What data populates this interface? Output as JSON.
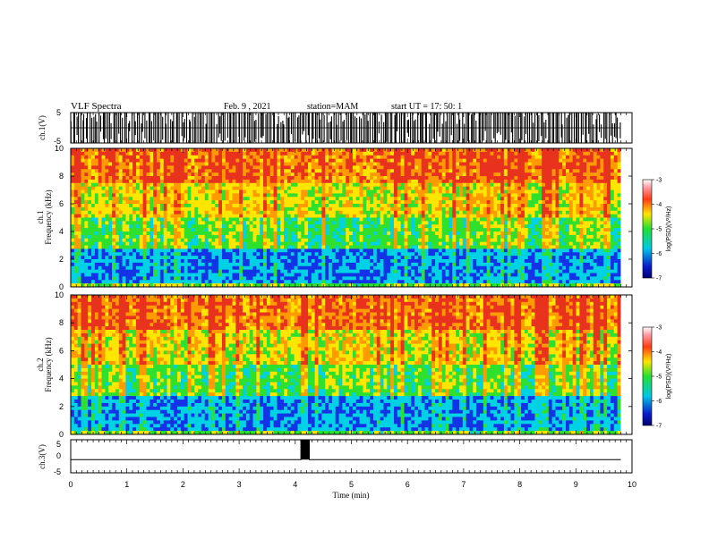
{
  "header": {
    "title": "VLF Spectra",
    "date": "Feb. 9 , 2021",
    "station": "station=MAM",
    "start": "start UT =  17: 50: 1"
  },
  "labels": {
    "ch1": "ch.1(V)",
    "ch3": "ch.3(V)",
    "spec1_ch": "ch.1",
    "spec2_ch": "ch.2",
    "freq": "Frequency (kHz)",
    "time": "Time (min)",
    "cbar_unit": "log(PSD)(V²/Hz)"
  },
  "colors": {
    "red": "#e8321e",
    "orange": "#ff9a00",
    "yellow": "#ffe600",
    "green": "#2fe02f",
    "cyan": "#00d2e6",
    "blue": "#1432e6",
    "navy": "#000080"
  },
  "chart_data": [
    {
      "type": "line",
      "panel": "ch.1 waveform",
      "ylabel": "ch.1(V)",
      "ylim": [
        -5,
        5
      ],
      "yticks": [
        "5",
        "-5"
      ],
      "xlim": [
        0,
        10
      ],
      "description_values": {
        "impulse_range_v": [
          -5,
          5
        ]
      }
    },
    {
      "type": "heatmap",
      "panel": "ch.1 spectrogram",
      "ylabel": "Frequency (kHz)",
      "channel": "ch.1",
      "ylim": [
        0,
        10
      ],
      "yticks": [
        "0",
        "2",
        "4",
        "6",
        "8",
        "10"
      ],
      "xlim": [
        0,
        10
      ],
      "colorbar": {
        "label": "log(PSD)(V²/Hz)",
        "ticks": [
          "-3",
          "-4",
          "-5",
          "-6",
          "-7"
        ],
        "range": [
          -7,
          -3
        ]
      }
    },
    {
      "type": "heatmap",
      "panel": "ch.2 spectrogram",
      "ylabel": "Frequency (kHz)",
      "channel": "ch.2",
      "ylim": [
        0,
        10
      ],
      "yticks": [
        "0",
        "2",
        "4",
        "6",
        "8",
        "10"
      ],
      "xlim": [
        0,
        10
      ],
      "colorbar": {
        "label": "log(PSD)(V²/Hz)",
        "ticks": [
          "-3",
          "-4",
          "-5",
          "-6",
          "-7"
        ],
        "range": [
          -7,
          -3
        ]
      }
    },
    {
      "type": "line",
      "panel": "ch.3 signal",
      "ylabel": "ch.3(V)",
      "ylim": [
        -5,
        5
      ],
      "yticks": [
        "5",
        "0",
        "-5"
      ],
      "xlim": [
        0,
        10
      ],
      "xlabel": "Time (min)",
      "xticks": [
        "0",
        "1",
        "2",
        "3",
        "4",
        "5",
        "6",
        "7",
        "8",
        "9",
        "10"
      ],
      "x": [
        0,
        4.1,
        4.1,
        4.25,
        4.25,
        9.8
      ],
      "y": [
        -1,
        -1,
        5,
        5,
        -1,
        -1
      ]
    }
  ]
}
